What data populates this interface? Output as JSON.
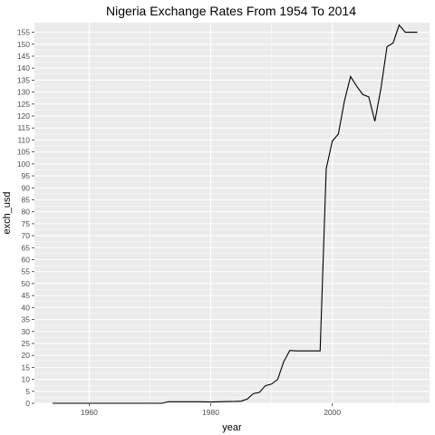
{
  "chart_data": {
    "type": "line",
    "title": "Nigeria Exchange Rates From 1954 To 2014",
    "xlabel": "year",
    "ylabel": "exch_usd",
    "xlim": [
      1951,
      2016
    ],
    "ylim": [
      0,
      159
    ],
    "x_ticks": [
      1960,
      1980,
      2000
    ],
    "y_ticks": [
      0,
      5,
      10,
      15,
      20,
      25,
      30,
      35,
      40,
      45,
      50,
      55,
      60,
      65,
      70,
      75,
      80,
      85,
      90,
      95,
      100,
      105,
      110,
      115,
      120,
      125,
      130,
      135,
      140,
      145,
      150,
      155
    ],
    "grid": true,
    "legend": "none",
    "colors": {
      "panel": "#ebebeb",
      "grid": "#ffffff",
      "line": "#000000"
    },
    "series": [
      {
        "x": [
          1954,
          1955,
          1956,
          1957,
          1958,
          1959,
          1960,
          1961,
          1962,
          1963,
          1964,
          1965,
          1966,
          1967,
          1968,
          1969,
          1970,
          1971,
          1972,
          1973,
          1974,
          1975,
          1976,
          1977,
          1978,
          1979,
          1980,
          1981,
          1982,
          1983,
          1984,
          1985,
          1986,
          1987,
          1988,
          1989,
          1990,
          1991,
          1992,
          1993,
          1994,
          1995,
          1996,
          1997,
          1998,
          1999,
          2000,
          2001,
          2002,
          2003,
          2004,
          2005,
          2006,
          2007,
          2008,
          2009,
          2010,
          2011,
          2012,
          2013,
          2014
        ],
        "y": [
          0,
          0,
          0,
          0,
          0,
          0,
          0,
          0,
          0,
          0,
          0,
          0,
          0,
          0,
          0,
          0,
          0,
          0,
          0,
          0.66,
          0.63,
          0.62,
          0.63,
          0.65,
          0.64,
          0.6,
          0.55,
          0.61,
          0.67,
          0.72,
          0.77,
          0.89,
          1.75,
          4.02,
          4.54,
          7.36,
          8.04,
          9.91,
          17.3,
          22.05,
          21.9,
          21.9,
          21.9,
          21.9,
          21.9,
          98.0,
          109.5,
          112.5,
          126.3,
          136.5,
          132.5,
          129.0,
          128.0,
          117.8,
          131.5,
          149.0,
          150.5,
          158.0,
          155.0,
          155.0,
          155.0
        ]
      }
    ]
  }
}
